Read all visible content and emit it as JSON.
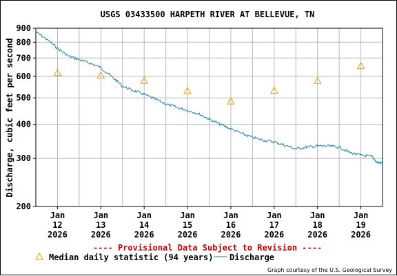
{
  "chart_data": {
    "type": "line",
    "title": "USGS 03433500 HARPETH RIVER AT BELLEVUE, TN",
    "ylabel": "Discharge, cubic feet per second",
    "xlabel": "",
    "y_scale": "log",
    "ylim": [
      200,
      900
    ],
    "y_ticks": [
      200,
      300,
      400,
      500,
      600,
      700,
      800,
      900
    ],
    "y_tick_labels": [
      "200",
      "300",
      "400",
      "500",
      "600",
      "700",
      "800",
      "900"
    ],
    "xlim": [
      "2026-01-11T12:00",
      "2026-01-19T12:00"
    ],
    "x_ticks": [
      "2026-01-12",
      "2026-01-13",
      "2026-01-14",
      "2026-01-15",
      "2026-01-16",
      "2026-01-17",
      "2026-01-18",
      "2026-01-19"
    ],
    "x_tick_labels": [
      [
        "Jan",
        "12",
        "2026"
      ],
      [
        "Jan",
        "13",
        "2026"
      ],
      [
        "Jan",
        "14",
        "2026"
      ],
      [
        "Jan",
        "15",
        "2026"
      ],
      [
        "Jan",
        "16",
        "2026"
      ],
      [
        "Jan",
        "17",
        "2026"
      ],
      [
        "Jan",
        "18",
        "2026"
      ],
      [
        "Jan",
        "19",
        "2026"
      ]
    ],
    "grid": true,
    "legend_position": "bottom",
    "series": [
      {
        "name": "Median daily statistic (94 years)",
        "kind": "markers",
        "marker": "triangle",
        "color": "#e6a000",
        "x": [
          "2026-01-12",
          "2026-01-13",
          "2026-01-14",
          "2026-01-15",
          "2026-01-16",
          "2026-01-17",
          "2026-01-18",
          "2026-01-19"
        ],
        "values": [
          618,
          605,
          578,
          530,
          486,
          532,
          578,
          655
        ]
      },
      {
        "name": "Discharge",
        "kind": "line",
        "color": "#1f7fa8",
        "x": [
          "2026-01-11T12:00",
          "2026-01-11T18:00",
          "2026-01-12T00:00",
          "2026-01-12T06:00",
          "2026-01-12T12:00",
          "2026-01-12T18:00",
          "2026-01-13T00:00",
          "2026-01-13T06:00",
          "2026-01-13T12:00",
          "2026-01-13T18:00",
          "2026-01-14T00:00",
          "2026-01-14T06:00",
          "2026-01-14T12:00",
          "2026-01-14T18:00",
          "2026-01-15T00:00",
          "2026-01-15T06:00",
          "2026-01-15T12:00",
          "2026-01-15T18:00",
          "2026-01-16T00:00",
          "2026-01-16T06:00",
          "2026-01-16T12:00",
          "2026-01-16T18:00",
          "2026-01-17T00:00",
          "2026-01-17T06:00",
          "2026-01-17T12:00",
          "2026-01-17T18:00",
          "2026-01-18T00:00",
          "2026-01-18T06:00",
          "2026-01-18T12:00",
          "2026-01-18T18:00",
          "2026-01-19T00:00",
          "2026-01-19T06:00",
          "2026-01-19T09:00",
          "2026-01-19T12:00"
        ],
        "values": [
          872,
          820,
          760,
          712,
          690,
          670,
          645,
          598,
          552,
          532,
          515,
          495,
          475,
          462,
          450,
          438,
          418,
          400,
          385,
          370,
          358,
          350,
          345,
          335,
          325,
          330,
          333,
          333,
          330,
          315,
          308,
          305,
          290,
          288
        ]
      }
    ]
  },
  "provisional_note": "---- Provisional Data Subject to Revision ----",
  "credit": "Graph courtesy of the U.S. Geological Survey",
  "colors": {
    "grid": "#b8b8b8",
    "discharge": "#1f7fa8",
    "median": "#e6a000",
    "provisional": "#cc0000"
  }
}
